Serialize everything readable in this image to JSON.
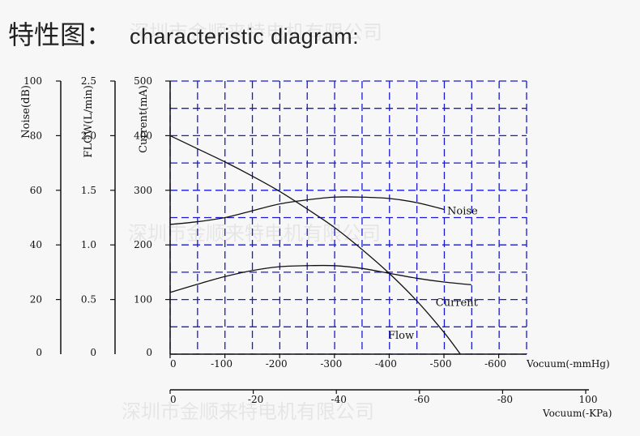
{
  "title": {
    "zh": "特性图：",
    "en": "characteristic diagram:"
  },
  "watermark": "深圳市金顺来特电机有限公司",
  "colors": {
    "grid": "#1a1acc",
    "curve": "#111111",
    "background": "#f7f7f7"
  },
  "chart_data": {
    "type": "line",
    "grid": true,
    "y_axes": [
      {
        "label": "Noise(dB)",
        "range": [
          0,
          100
        ],
        "ticks": [
          "0",
          "20",
          "40",
          "60",
          "80",
          "100"
        ]
      },
      {
        "label": "FLOW(L/min)",
        "range": [
          0,
          2.5
        ],
        "ticks": [
          "0",
          "0.5",
          "1.0",
          "1.5",
          "2.0",
          "2.5"
        ]
      },
      {
        "label": "Current(mA)",
        "range": [
          0,
          500
        ],
        "ticks": [
          "0",
          "100",
          "200",
          "300",
          "400",
          "500"
        ]
      }
    ],
    "x_axes": [
      {
        "label": "Vocuum(-mmHg)",
        "range": [
          0,
          -650
        ],
        "ticks": [
          "0",
          "-100",
          "-200",
          "-300",
          "-400",
          "-500",
          "-600"
        ]
      },
      {
        "label": "Vocuum(-KPa)",
        "range": [
          0,
          100
        ],
        "ticks": [
          "0",
          "-20",
          "-40",
          "-60",
          "-80",
          "100"
        ]
      }
    ],
    "series": [
      {
        "name": "Noise",
        "axis": "Noise(dB)",
        "x": [
          0,
          -50,
          -100,
          -150,
          -200,
          -250,
          -300,
          -350,
          -400,
          -450,
          -500
        ],
        "y": [
          47.5,
          48.5,
          50,
          52.5,
          55,
          56.5,
          57.5,
          57.5,
          57,
          55.5,
          53
        ]
      },
      {
        "name": "Current",
        "axis": "Current(mA)",
        "x": [
          0,
          -50,
          -100,
          -150,
          -200,
          -250,
          -300,
          -350,
          -400,
          -450,
          -500,
          -550
        ],
        "y": [
          113,
          128,
          142,
          153,
          160,
          162,
          162,
          157,
          148,
          139,
          132,
          127
        ]
      },
      {
        "name": "Flow",
        "axis": "FLOW(L/min)",
        "x": [
          0,
          -50,
          -100,
          -150,
          -200,
          -250,
          -300,
          -350,
          -400,
          -450,
          -500,
          -530
        ],
        "y": [
          2.0,
          1.88,
          1.76,
          1.63,
          1.49,
          1.33,
          1.16,
          0.96,
          0.74,
          0.49,
          0.2,
          0
        ]
      }
    ]
  }
}
